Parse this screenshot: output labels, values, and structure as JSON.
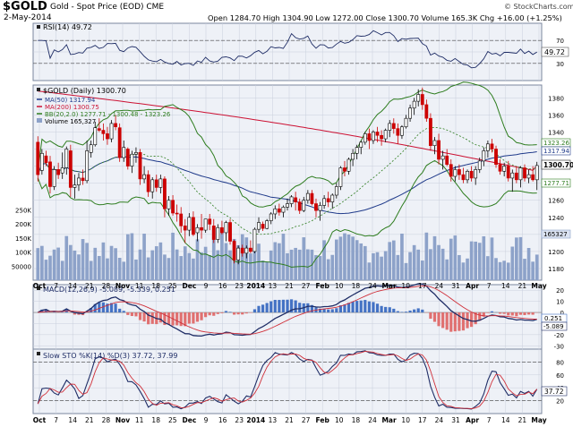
{
  "header": {
    "symbol": "$GOLD",
    "description": "Gold - Spot Price (EOD)  CME",
    "date": "2-May-2014",
    "credit": "© StockCharts.com",
    "ohlc_text": "Open 1284.70  High 1304.90  Low 1272.00  Close 1300.70  Volume 165.3K  Chg +16.00 (+1.25%)",
    "up_arrow": "▲"
  },
  "panels": {
    "rsi": {
      "legend": "RSI(14) 49.72",
      "ticks": [
        "70",
        "50",
        "30"
      ],
      "last_label": "49.72"
    },
    "price": {
      "legend_main": "$GOLD (Daily) 1300.70",
      "legend_ma50": "MA(50) 1317.94",
      "legend_ma200": "MA(200) 1300.75",
      "legend_bb": "BB(20,2.0) 1277.71 - 1300.48 - 1323.26",
      "legend_volume": "Volume 165,327",
      "price_ticks": [
        "1380",
        "1360",
        "1340",
        "1320",
        "1300",
        "1280",
        "1260",
        "1240",
        "1220",
        "1200",
        "1180"
      ],
      "volume_ticks": [
        "250K",
        "200K",
        "150K",
        "100K",
        "50000"
      ],
      "last_labels": [
        "1323.26",
        "1317.94",
        "1300.70",
        "1277.71",
        "165327"
      ]
    },
    "macd": {
      "legend": "MACD(12,26,9) -5.089, -5.339, 0.251",
      "ticks": [
        "20",
        "10",
        "0",
        "-10",
        "-20",
        "-30"
      ],
      "last_labels": [
        "0.251",
        "-5.089"
      ]
    },
    "sto": {
      "legend": "Slow STO %K(14) %D(3) 37.72, 37.99",
      "ticks": [
        "80",
        "60",
        "40",
        "20"
      ],
      "last_label": "37.72"
    }
  },
  "x_axis_labels": [
    "Oct",
    "7",
    "14",
    "21",
    "28",
    "Nov",
    "11",
    "18",
    "25",
    "Dec",
    "9",
    "16",
    "23",
    "2014",
    "13",
    "21",
    "27",
    "Feb",
    "10",
    "18",
    "24",
    "Mar",
    "10",
    "17",
    "24",
    "31",
    "Apr",
    "7",
    "14",
    "21",
    "May"
  ],
  "colors": {
    "up": "#000000",
    "down": "#cc0000",
    "ma50": "#1f3a8a",
    "ma200": "#cc1133",
    "bb": "#2e7d1f",
    "bb_mid": "#2e7d1f",
    "volume": "#8da2c9",
    "macd_line": "#1f2d66",
    "signal_line": "#d0303a",
    "hist_pos": "#4472c4",
    "hist_neg": "#e07070",
    "sto_k": "#1f2d66",
    "sto_d": "#d0303a",
    "rsi_line": "#1f2d66",
    "panel_bg": "#eef1f7",
    "grid": "#c9cfdc"
  },
  "chart_data": [
    {
      "type": "line",
      "title": "RSI(14)",
      "ylim": [
        0,
        100
      ],
      "reference_lines": [
        70,
        30
      ],
      "x": [
        "Oct",
        "Nov",
        "Dec",
        "2014",
        "Feb",
        "Mar",
        "Apr",
        "May"
      ],
      "series": [
        {
          "name": "RSI(14)",
          "values": [
            47,
            48,
            46,
            42,
            60,
            77,
            42,
            49.72
          ]
        }
      ]
    },
    {
      "type": "candlestick",
      "title": "$GOLD (Daily)",
      "ylim": [
        1180,
        1395
      ],
      "x_start": "2013-10-01",
      "ohlc": [
        [
          1328,
          1335,
          1282,
          1290
        ],
        [
          1295,
          1320,
          1290,
          1315
        ],
        [
          1312,
          1318,
          1300,
          1304
        ],
        [
          1305,
          1312,
          1268,
          1276
        ],
        [
          1276,
          1300,
          1272,
          1296
        ],
        [
          1296,
          1304,
          1285,
          1290
        ],
        [
          1292,
          1316,
          1285,
          1298
        ],
        [
          1298,
          1323,
          1290,
          1320
        ],
        [
          1318,
          1325,
          1264,
          1275
        ],
        [
          1275,
          1290,
          1262,
          1278
        ],
        [
          1278,
          1292,
          1271,
          1286
        ],
        [
          1286,
          1296,
          1278,
          1283
        ],
        [
          1283,
          1330,
          1280,
          1318
        ],
        [
          1316,
          1330,
          1310,
          1325
        ],
        [
          1325,
          1352,
          1323,
          1345
        ],
        [
          1344,
          1356,
          1340,
          1342
        ],
        [
          1342,
          1350,
          1330,
          1338
        ],
        [
          1338,
          1346,
          1325,
          1332
        ],
        [
          1332,
          1354,
          1328,
          1350
        ],
        [
          1350,
          1360,
          1342,
          1346
        ],
        [
          1345,
          1350,
          1305,
          1310
        ],
        [
          1310,
          1330,
          1305,
          1322
        ],
        [
          1320,
          1322,
          1296,
          1300
        ],
        [
          1300,
          1318,
          1292,
          1314
        ],
        [
          1314,
          1322,
          1304,
          1316
        ],
        [
          1316,
          1320,
          1278,
          1285
        ],
        [
          1285,
          1300,
          1280,
          1290
        ],
        [
          1290,
          1295,
          1264,
          1270
        ],
        [
          1270,
          1287,
          1262,
          1284
        ],
        [
          1284,
          1290,
          1270,
          1275
        ],
        [
          1275,
          1290,
          1268,
          1285
        ],
        [
          1285,
          1288,
          1240,
          1250
        ],
        [
          1250,
          1265,
          1242,
          1260
        ],
        [
          1260,
          1266,
          1242,
          1245
        ],
        [
          1245,
          1255,
          1235,
          1244
        ],
        [
          1244,
          1252,
          1222,
          1230
        ],
        [
          1230,
          1238,
          1210,
          1225
        ],
        [
          1225,
          1245,
          1218,
          1240
        ],
        [
          1240,
          1247,
          1218,
          1220
        ],
        [
          1222,
          1232,
          1212,
          1228
        ],
        [
          1228,
          1244,
          1215,
          1225
        ],
        [
          1225,
          1238,
          1222,
          1238
        ],
        [
          1238,
          1244,
          1225,
          1232
        ],
        [
          1230,
          1238,
          1210,
          1214
        ],
        [
          1214,
          1232,
          1210,
          1228
        ],
        [
          1228,
          1236,
          1220,
          1222
        ],
        [
          1222,
          1236,
          1212,
          1234
        ],
        [
          1234,
          1238,
          1208,
          1212
        ],
        [
          1212,
          1214,
          1186,
          1190
        ],
        [
          1190,
          1207,
          1185,
          1204
        ],
        [
          1204,
          1208,
          1194,
          1198
        ],
        [
          1198,
          1207,
          1192,
          1204
        ],
        [
          1204,
          1213,
          1198,
          1200
        ],
        [
          1200,
          1228,
          1198,
          1226
        ],
        [
          1226,
          1240,
          1222,
          1234
        ],
        [
          1232,
          1235,
          1224,
          1227
        ],
        [
          1227,
          1238,
          1226,
          1236
        ],
        [
          1236,
          1246,
          1232,
          1244
        ],
        [
          1244,
          1254,
          1238,
          1250
        ],
        [
          1250,
          1256,
          1242,
          1246
        ],
        [
          1246,
          1254,
          1240,
          1252
        ],
        [
          1252,
          1262,
          1248,
          1256
        ],
        [
          1256,
          1266,
          1252,
          1264
        ],
        [
          1263,
          1270,
          1248,
          1258
        ],
        [
          1258,
          1262,
          1244,
          1248
        ],
        [
          1248,
          1264,
          1246,
          1260
        ],
        [
          1260,
          1272,
          1256,
          1268
        ],
        [
          1268,
          1272,
          1254,
          1256
        ],
        [
          1256,
          1262,
          1240,
          1248
        ],
        [
          1248,
          1258,
          1236,
          1254
        ],
        [
          1254,
          1266,
          1250,
          1262
        ],
        [
          1262,
          1270,
          1252,
          1258
        ],
        [
          1258,
          1268,
          1250,
          1266
        ],
        [
          1266,
          1280,
          1262,
          1276
        ],
        [
          1276,
          1300,
          1272,
          1298
        ],
        [
          1298,
          1306,
          1288,
          1294
        ],
        [
          1294,
          1310,
          1290,
          1308
        ],
        [
          1308,
          1320,
          1300,
          1315
        ],
        [
          1315,
          1325,
          1308,
          1322
        ],
        [
          1322,
          1330,
          1314,
          1328
        ],
        [
          1328,
          1340,
          1325,
          1338
        ],
        [
          1338,
          1344,
          1320,
          1330
        ],
        [
          1330,
          1342,
          1326,
          1340
        ],
        [
          1340,
          1346,
          1328,
          1336
        ],
        [
          1336,
          1342,
          1324,
          1332
        ],
        [
          1332,
          1344,
          1328,
          1342
        ],
        [
          1342,
          1354,
          1334,
          1350
        ],
        [
          1350,
          1356,
          1338,
          1344
        ],
        [
          1344,
          1350,
          1326,
          1336
        ],
        [
          1336,
          1348,
          1332,
          1346
        ],
        [
          1346,
          1360,
          1344,
          1356
        ],
        [
          1356,
          1372,
          1352,
          1368
        ],
        [
          1368,
          1380,
          1360,
          1376
        ],
        [
          1376,
          1390,
          1370,
          1384
        ],
        [
          1384,
          1392,
          1366,
          1372
        ],
        [
          1372,
          1378,
          1352,
          1356
        ],
        [
          1356,
          1362,
          1318,
          1324
        ],
        [
          1324,
          1334,
          1314,
          1330
        ],
        [
          1330,
          1338,
          1302,
          1308
        ],
        [
          1308,
          1318,
          1296,
          1312
        ],
        [
          1312,
          1320,
          1300,
          1302
        ],
        [
          1302,
          1308,
          1282,
          1288
        ],
        [
          1288,
          1300,
          1282,
          1296
        ],
        [
          1296,
          1302,
          1284,
          1290
        ],
        [
          1290,
          1298,
          1280,
          1284
        ],
        [
          1284,
          1296,
          1280,
          1294
        ],
        [
          1294,
          1300,
          1282,
          1286
        ],
        [
          1286,
          1300,
          1278,
          1296
        ],
        [
          1296,
          1310,
          1292,
          1306
        ],
        [
          1306,
          1322,
          1300,
          1318
        ],
        [
          1318,
          1330,
          1310,
          1326
        ],
        [
          1326,
          1332,
          1316,
          1320
        ],
        [
          1320,
          1324,
          1298,
          1302
        ],
        [
          1302,
          1308,
          1290,
          1294
        ],
        [
          1294,
          1304,
          1288,
          1300
        ],
        [
          1300,
          1306,
          1282,
          1286
        ],
        [
          1286,
          1296,
          1270,
          1292
        ],
        [
          1292,
          1300,
          1280,
          1284
        ],
        [
          1284,
          1300,
          1275,
          1298
        ],
        [
          1298,
          1302,
          1282,
          1286
        ],
        [
          1286,
          1296,
          1280,
          1290
        ],
        [
          1290,
          1300,
          1282,
          1284
        ],
        [
          1284,
          1305,
          1272,
          1300.7
        ]
      ],
      "series": [
        {
          "name": "MA(50)",
          "last": 1317.94
        },
        {
          "name": "MA(200)",
          "last": 1300.75
        },
        {
          "name": "BB(20,2.0)",
          "last": [
            1277.71,
            1300.48,
            1323.26
          ]
        }
      ]
    },
    {
      "type": "bar",
      "title": "Volume",
      "ylim": [
        0,
        270000
      ],
      "last": 165327
    },
    {
      "type": "line",
      "title": "MACD(12,26,9)",
      "ylim": [
        -33,
        25
      ],
      "series": [
        {
          "name": "MACD",
          "last": -5.089
        },
        {
          "name": "Signal",
          "last": -5.339
        },
        {
          "name": "Histogram",
          "last": 0.251
        }
      ]
    },
    {
      "type": "line",
      "title": "Slow STO %K(14) %D(3)",
      "ylim": [
        0,
        100
      ],
      "reference_lines": [
        80,
        20
      ],
      "series": [
        {
          "name": "%K",
          "last": 37.72
        },
        {
          "name": "%D",
          "last": 37.99
        }
      ]
    }
  ]
}
